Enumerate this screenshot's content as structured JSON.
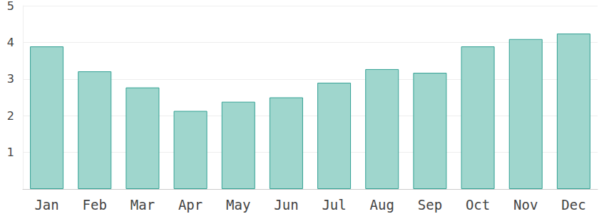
{
  "chart_data": {
    "type": "bar",
    "categories": [
      "Jan",
      "Feb",
      "Mar",
      "Apr",
      "May",
      "Jun",
      "Jul",
      "Aug",
      "Sep",
      "Oct",
      "Nov",
      "Dec"
    ],
    "values": [
      3.89,
      3.21,
      2.77,
      2.13,
      2.38,
      2.5,
      2.9,
      3.27,
      3.17,
      3.89,
      4.09,
      4.24
    ],
    "color": "#9ad4ca",
    "ylim": [
      0,
      5
    ],
    "yticks": [
      1,
      2,
      3,
      4,
      5
    ],
    "grid": true
  }
}
